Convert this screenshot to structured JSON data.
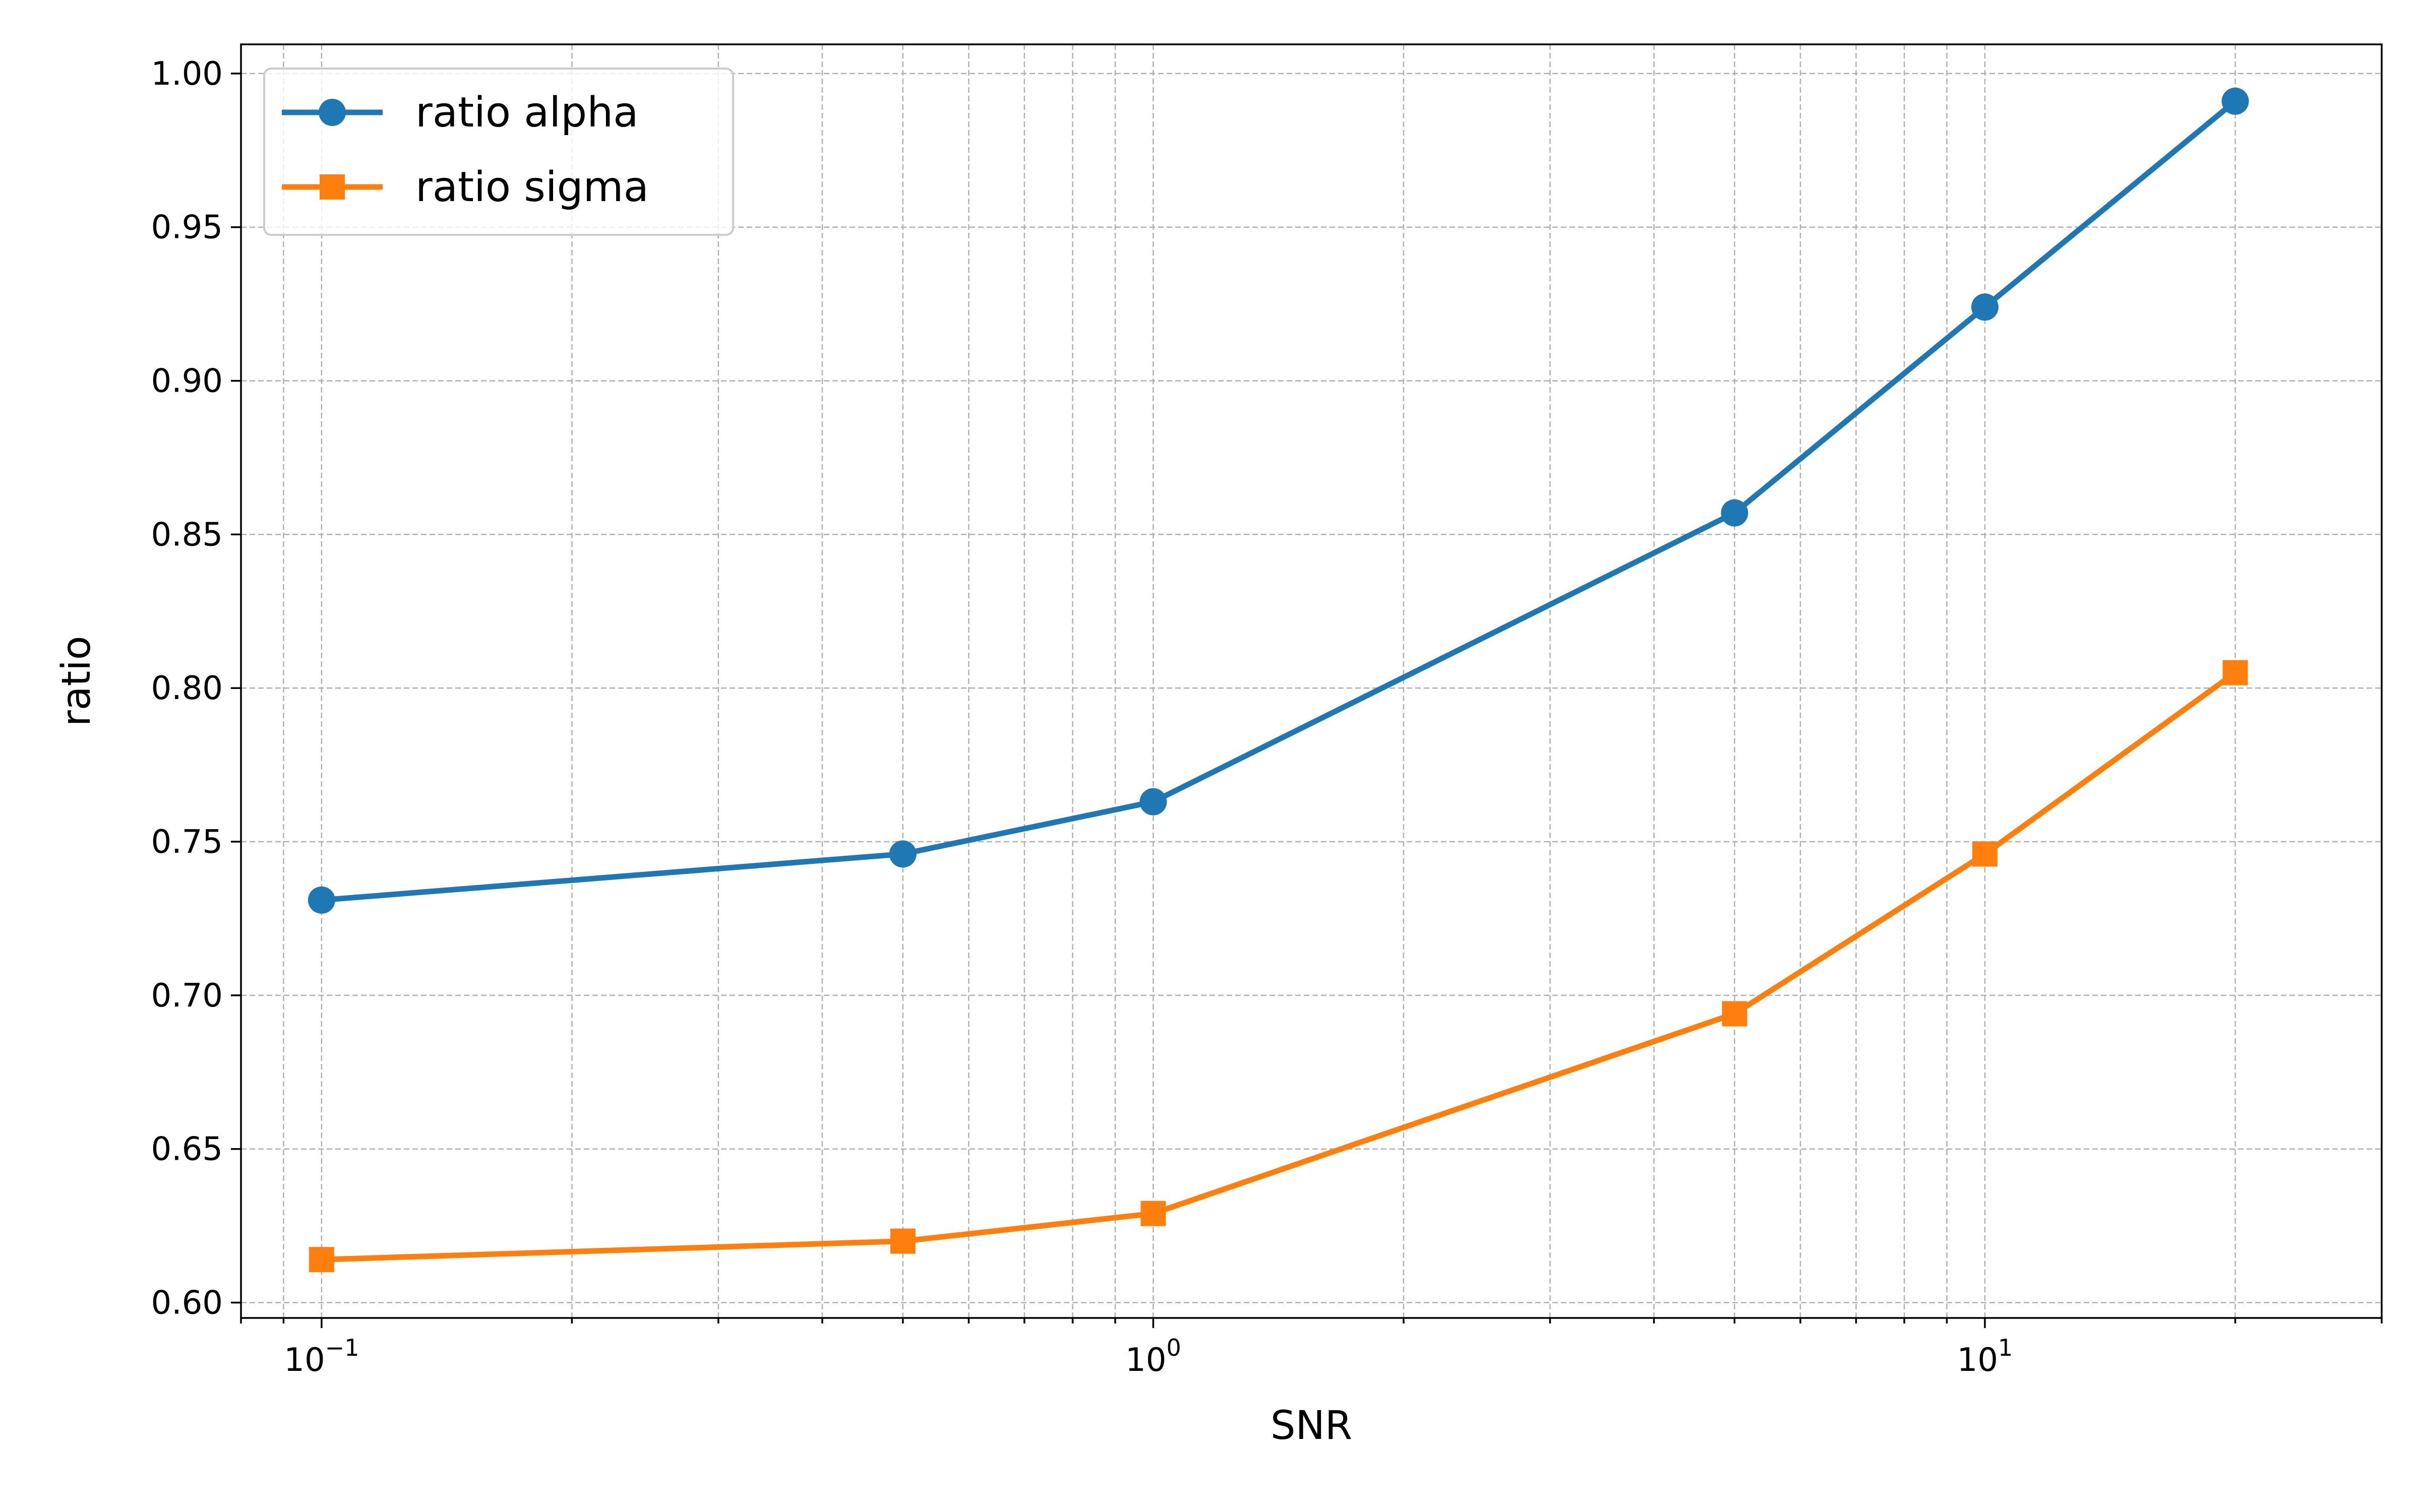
{
  "chart_data": {
    "type": "line",
    "title": "",
    "xlabel": "SNR",
    "ylabel": "ratio",
    "xscale": "log",
    "xlim": [
      0.08,
      30
    ],
    "ylim": [
      0.595,
      1.0095
    ],
    "grid": true,
    "grid_style": "dashed, major and minor",
    "legend_position": "top-left",
    "x_ticks": [
      {
        "value": 0.1,
        "base": "10",
        "exp": "−1"
      },
      {
        "value": 1,
        "base": "10",
        "exp": "0"
      },
      {
        "value": 10,
        "base": "10",
        "exp": "1"
      }
    ],
    "y_ticks": [
      {
        "value": 0.6,
        "label": "0.60"
      },
      {
        "value": 0.65,
        "label": "0.65"
      },
      {
        "value": 0.7,
        "label": "0.70"
      },
      {
        "value": 0.75,
        "label": "0.75"
      },
      {
        "value": 0.8,
        "label": "0.80"
      },
      {
        "value": 0.85,
        "label": "0.85"
      },
      {
        "value": 0.9,
        "label": "0.90"
      },
      {
        "value": 0.95,
        "label": "0.95"
      },
      {
        "value": 1.0,
        "label": "1.00"
      }
    ],
    "x": [
      0.1,
      0.5,
      1,
      5,
      10,
      20
    ],
    "series": [
      {
        "name": "ratio alpha",
        "marker": "circle",
        "color": "#1f77b4",
        "values": [
          0.731,
          0.746,
          0.763,
          0.857,
          0.924,
          0.991
        ]
      },
      {
        "name": "ratio sigma",
        "marker": "square",
        "color": "#ff7f0e",
        "values": [
          0.614,
          0.62,
          0.629,
          0.694,
          0.746,
          0.805
        ]
      }
    ]
  }
}
